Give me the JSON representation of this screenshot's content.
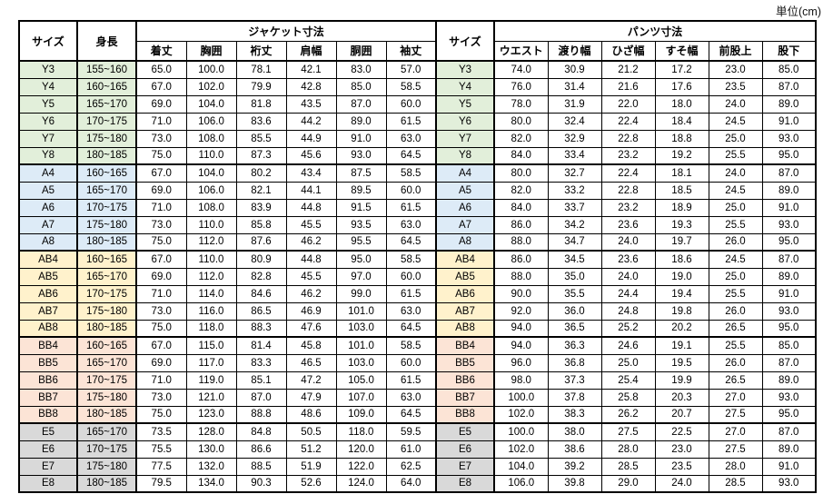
{
  "unit_label": "単位(cm)",
  "table": {
    "header": {
      "size": "サイズ",
      "height": "身長",
      "jacket_group": "ジャケット寸法",
      "jacket_cols": [
        "着丈",
        "胸囲",
        "裄丈",
        "肩幅",
        "胴囲",
        "袖丈"
      ],
      "size2": "サイズ",
      "pants_group": "パンツ寸法",
      "pants_cols": [
        "ウエスト",
        "渡り幅",
        "ひざ幅",
        "すそ幅",
        "前股上",
        "股下"
      ]
    },
    "groups": [
      {
        "color": "#E2EFDA",
        "rows": [
          {
            "size": "Y3",
            "height": "155~160",
            "jacket": [
              "65.0",
              "100.0",
              "78.1",
              "42.1",
              "83.0",
              "57.0"
            ],
            "pants": [
              "74.0",
              "30.9",
              "21.2",
              "17.2",
              "23.0",
              "85.0"
            ]
          },
          {
            "size": "Y4",
            "height": "160~165",
            "jacket": [
              "67.0",
              "102.0",
              "79.9",
              "42.8",
              "85.0",
              "58.5"
            ],
            "pants": [
              "76.0",
              "31.4",
              "21.6",
              "17.6",
              "23.5",
              "87.0"
            ]
          },
          {
            "size": "Y5",
            "height": "165~170",
            "jacket": [
              "69.0",
              "104.0",
              "81.8",
              "43.5",
              "87.0",
              "60.0"
            ],
            "pants": [
              "78.0",
              "31.9",
              "22.0",
              "18.0",
              "24.0",
              "89.0"
            ]
          },
          {
            "size": "Y6",
            "height": "170~175",
            "jacket": [
              "71.0",
              "106.0",
              "83.6",
              "44.2",
              "89.0",
              "61.5"
            ],
            "pants": [
              "80.0",
              "32.4",
              "22.4",
              "18.4",
              "24.5",
              "91.0"
            ]
          },
          {
            "size": "Y7",
            "height": "175~180",
            "jacket": [
              "73.0",
              "108.0",
              "85.5",
              "44.9",
              "91.0",
              "63.0"
            ],
            "pants": [
              "82.0",
              "32.9",
              "22.8",
              "18.8",
              "25.0",
              "93.0"
            ]
          },
          {
            "size": "Y8",
            "height": "180~185",
            "jacket": [
              "75.0",
              "110.0",
              "87.3",
              "45.6",
              "93.0",
              "64.5"
            ],
            "pants": [
              "84.0",
              "33.4",
              "23.2",
              "19.2",
              "25.5",
              "95.0"
            ]
          }
        ]
      },
      {
        "color": "#DDEBF7",
        "rows": [
          {
            "size": "A4",
            "height": "160~165",
            "jacket": [
              "67.0",
              "104.0",
              "80.2",
              "43.4",
              "87.5",
              "58.5"
            ],
            "pants": [
              "80.0",
              "32.7",
              "22.4",
              "18.1",
              "24.0",
              "87.0"
            ]
          },
          {
            "size": "A5",
            "height": "165~170",
            "jacket": [
              "69.0",
              "106.0",
              "82.1",
              "44.1",
              "89.5",
              "60.0"
            ],
            "pants": [
              "82.0",
              "33.2",
              "22.8",
              "18.5",
              "24.5",
              "89.0"
            ]
          },
          {
            "size": "A6",
            "height": "170~175",
            "jacket": [
              "71.0",
              "108.0",
              "83.9",
              "44.8",
              "91.5",
              "61.5"
            ],
            "pants": [
              "84.0",
              "33.7",
              "23.2",
              "18.9",
              "25.0",
              "91.0"
            ]
          },
          {
            "size": "A7",
            "height": "175~180",
            "jacket": [
              "73.0",
              "110.0",
              "85.8",
              "45.5",
              "93.5",
              "63.0"
            ],
            "pants": [
              "86.0",
              "34.2",
              "23.6",
              "19.3",
              "25.5",
              "93.0"
            ]
          },
          {
            "size": "A8",
            "height": "180~185",
            "jacket": [
              "75.0",
              "112.0",
              "87.6",
              "46.2",
              "95.5",
              "64.5"
            ],
            "pants": [
              "88.0",
              "34.7",
              "24.0",
              "19.7",
              "26.0",
              "95.0"
            ]
          }
        ]
      },
      {
        "color": "#FFF2CC",
        "rows": [
          {
            "size": "AB4",
            "height": "160~165",
            "jacket": [
              "67.0",
              "110.0",
              "80.9",
              "44.8",
              "95.0",
              "58.5"
            ],
            "pants": [
              "86.0",
              "34.5",
              "23.6",
              "18.6",
              "24.5",
              "87.0"
            ]
          },
          {
            "size": "AB5",
            "height": "165~170",
            "jacket": [
              "69.0",
              "112.0",
              "82.8",
              "45.5",
              "97.0",
              "60.0"
            ],
            "pants": [
              "88.0",
              "35.0",
              "24.0",
              "19.0",
              "25.0",
              "89.0"
            ]
          },
          {
            "size": "AB6",
            "height": "170~175",
            "jacket": [
              "71.0",
              "114.0",
              "84.6",
              "46.2",
              "99.0",
              "61.5"
            ],
            "pants": [
              "90.0",
              "35.5",
              "24.4",
              "19.4",
              "25.5",
              "91.0"
            ]
          },
          {
            "size": "AB7",
            "height": "175~180",
            "jacket": [
              "73.0",
              "116.0",
              "86.5",
              "46.9",
              "101.0",
              "63.0"
            ],
            "pants": [
              "92.0",
              "36.0",
              "24.8",
              "19.8",
              "26.0",
              "93.0"
            ]
          },
          {
            "size": "AB8",
            "height": "180~185",
            "jacket": [
              "75.0",
              "118.0",
              "88.3",
              "47.6",
              "103.0",
              "64.5"
            ],
            "pants": [
              "94.0",
              "36.5",
              "25.2",
              "20.2",
              "26.5",
              "95.0"
            ]
          }
        ]
      },
      {
        "color": "#FCE4D6",
        "rows": [
          {
            "size": "BB4",
            "height": "160~165",
            "jacket": [
              "67.0",
              "115.0",
              "81.4",
              "45.8",
              "101.0",
              "58.5"
            ],
            "pants": [
              "94.0",
              "36.3",
              "24.6",
              "19.1",
              "25.5",
              "85.0"
            ]
          },
          {
            "size": "BB5",
            "height": "165~170",
            "jacket": [
              "69.0",
              "117.0",
              "83.3",
              "46.5",
              "103.0",
              "60.0"
            ],
            "pants": [
              "96.0",
              "36.8",
              "25.0",
              "19.5",
              "26.0",
              "87.0"
            ]
          },
          {
            "size": "BB6",
            "height": "170~175",
            "jacket": [
              "71.0",
              "119.0",
              "85.1",
              "47.2",
              "105.0",
              "61.5"
            ],
            "pants": [
              "98.0",
              "37.3",
              "25.4",
              "19.9",
              "26.5",
              "89.0"
            ]
          },
          {
            "size": "BB7",
            "height": "175~180",
            "jacket": [
              "73.0",
              "121.0",
              "87.0",
              "47.9",
              "107.0",
              "63.0"
            ],
            "pants": [
              "100.0",
              "37.8",
              "25.8",
              "20.3",
              "27.0",
              "93.0"
            ]
          },
          {
            "size": "BB8",
            "height": "180~185",
            "jacket": [
              "75.0",
              "123.0",
              "88.8",
              "48.6",
              "109.0",
              "64.5"
            ],
            "pants": [
              "102.0",
              "38.3",
              "26.2",
              "20.7",
              "27.5",
              "95.0"
            ]
          }
        ]
      },
      {
        "color": "#D9D9D9",
        "rows": [
          {
            "size": "E5",
            "height": "165~170",
            "jacket": [
              "73.5",
              "128.0",
              "84.8",
              "50.5",
              "118.0",
              "59.5"
            ],
            "pants": [
              "100.0",
              "38.0",
              "27.5",
              "22.5",
              "27.0",
              "87.0"
            ]
          },
          {
            "size": "E6",
            "height": "170~175",
            "jacket": [
              "75.5",
              "130.0",
              "86.6",
              "51.2",
              "120.0",
              "61.0"
            ],
            "pants": [
              "102.0",
              "38.6",
              "28.0",
              "23.0",
              "27.5",
              "89.0"
            ]
          },
          {
            "size": "E7",
            "height": "175~180",
            "jacket": [
              "77.5",
              "132.0",
              "88.5",
              "51.9",
              "122.0",
              "62.5"
            ],
            "pants": [
              "104.0",
              "39.2",
              "28.5",
              "23.5",
              "28.0",
              "91.0"
            ]
          },
          {
            "size": "E8",
            "height": "180~185",
            "jacket": [
              "79.5",
              "134.0",
              "90.3",
              "52.6",
              "124.0",
              "64.0"
            ],
            "pants": [
              "106.0",
              "39.8",
              "29.0",
              "24.0",
              "28.5",
              "93.0"
            ]
          }
        ]
      }
    ]
  }
}
